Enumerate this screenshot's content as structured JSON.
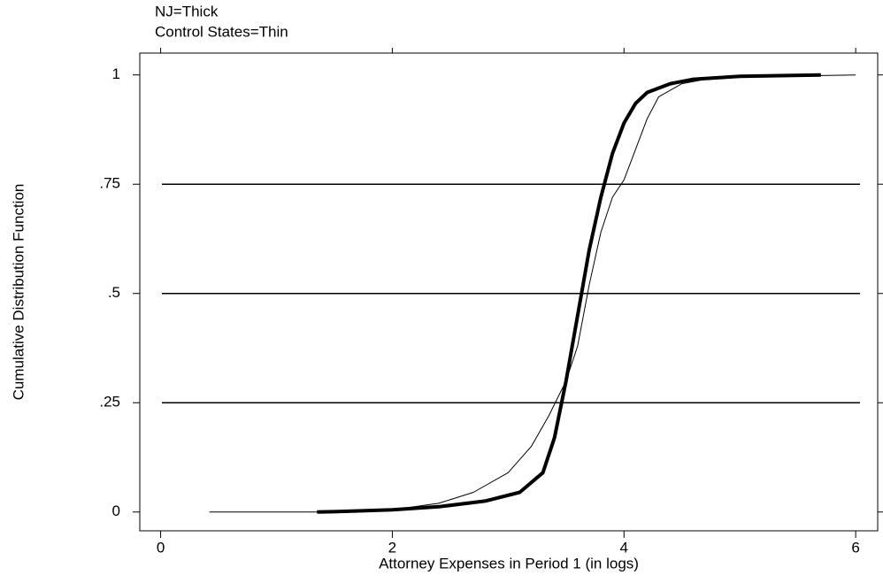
{
  "chart_data": {
    "type": "line",
    "annotations": [
      "NJ=Thick",
      "Control States=Thin"
    ],
    "x_label": "Attorney Expenses in Period 1 (in logs)",
    "y_label": "Cumulative Distribution Function",
    "series": [
      {
        "color": "#000000",
        "width": 4,
        "x": [
          1.35,
          1.65,
          2.0,
          2.4,
          2.8,
          3.1,
          3.3,
          3.4,
          3.5,
          3.6,
          3.7,
          3.8,
          3.9,
          4.0,
          4.1,
          4.2,
          4.4,
          4.6,
          5.0,
          5.7
        ],
        "values": [
          0,
          0.002,
          0.005,
          0.012,
          0.025,
          0.045,
          0.09,
          0.17,
          0.3,
          0.45,
          0.6,
          0.72,
          0.82,
          0.89,
          0.935,
          0.96,
          0.98,
          0.99,
          0.997,
          1
        ]
      },
      {
        "color": "#000000",
        "width": 1,
        "x": [
          0.42,
          1.5,
          2.0,
          2.4,
          2.7,
          3.0,
          3.2,
          3.35,
          3.5,
          3.6,
          3.7,
          3.8,
          3.9,
          4.0,
          4.1,
          4.2,
          4.3,
          4.5,
          4.8,
          6.0
        ],
        "values": [
          0,
          0,
          0.005,
          0.02,
          0.045,
          0.09,
          0.15,
          0.22,
          0.3,
          0.38,
          0.52,
          0.64,
          0.72,
          0.76,
          0.83,
          0.9,
          0.95,
          0.98,
          0.995,
          1
        ]
      }
    ],
    "xlim": [
      -0.18,
      6.19
    ],
    "xticks": [
      0,
      2,
      4,
      6
    ],
    "ylim": [
      -0.043,
      1.05
    ],
    "yticks": [
      0,
      {
        "value": 0.25,
        "label": ".25"
      },
      {
        "value": 0.5,
        "label": ".5"
      },
      {
        "value": 0.75,
        "label": ".75"
      },
      1
    ],
    "grid": true
  }
}
